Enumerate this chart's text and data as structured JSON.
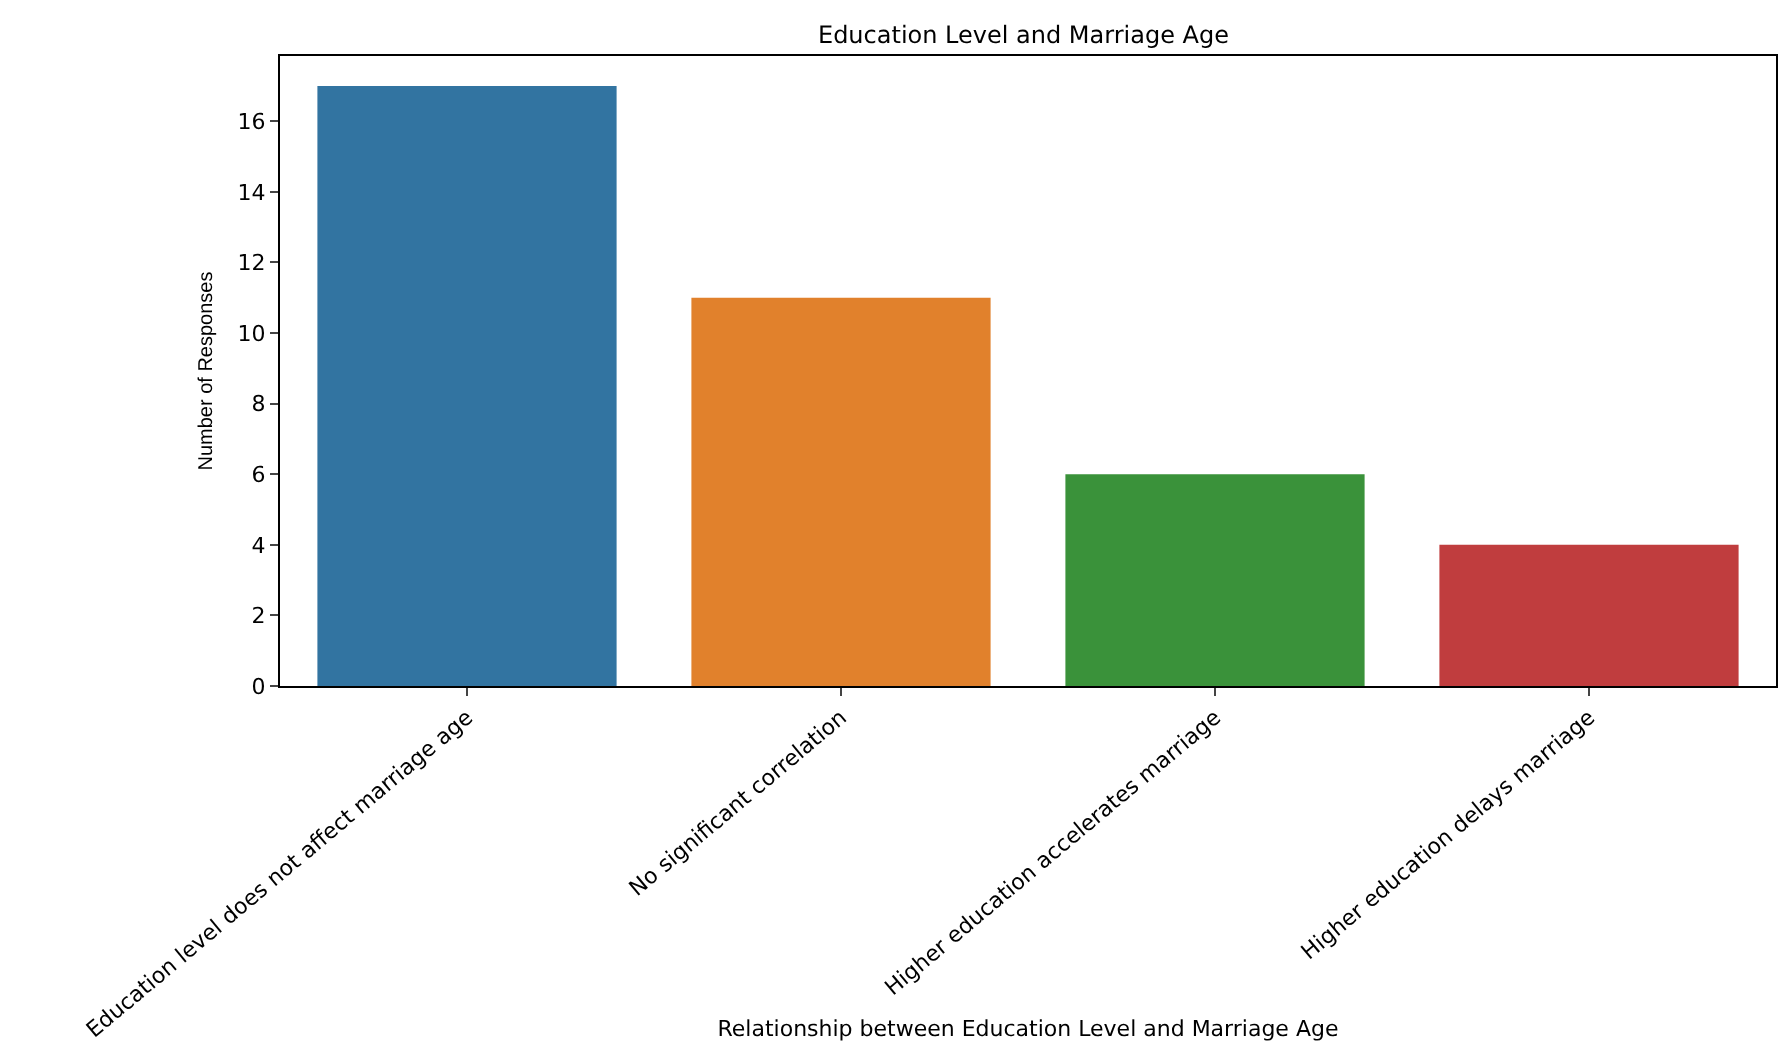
{
  "chart_data": {
    "type": "bar",
    "title": "Education Level and Marriage Age",
    "xlabel": "Relationship between Education Level and Marriage Age",
    "ylabel": "Number of Responses",
    "categories": [
      "Education level does not affect marriage age",
      "No significant correlation",
      "Higher education accelerates marriage",
      "Higher education delays marriage"
    ],
    "values": [
      17,
      11,
      6,
      4
    ],
    "colors": [
      "#3274a1",
      "#e1812c",
      "#3a923a",
      "#c03d3e"
    ],
    "ylim": [
      0,
      17.85
    ],
    "yticks": [
      0,
      2,
      4,
      6,
      8,
      10,
      12,
      14,
      16
    ],
    "grid": false
  }
}
